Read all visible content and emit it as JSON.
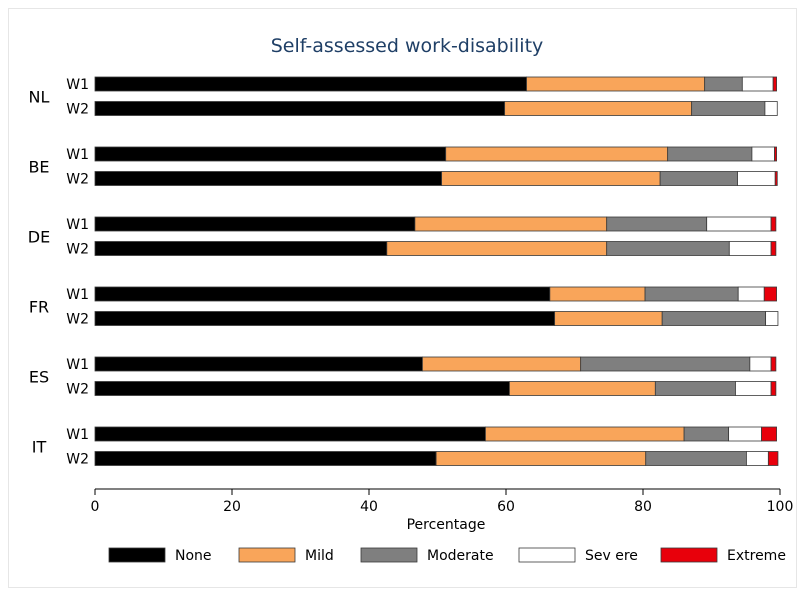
{
  "chart_data": {
    "type": "bar",
    "orientation": "horizontal",
    "stacked": true,
    "title": "Self-assessed work-disability",
    "xlabel": "Percentage",
    "ylabel": "",
    "xlim": [
      0,
      100
    ],
    "xticks": [
      0,
      20,
      40,
      60,
      80,
      100
    ],
    "grid": false,
    "legend_position": "bottom",
    "legend": [
      "None",
      "Mild",
      "Moderate",
      "Sev ere",
      "Extreme"
    ],
    "colors": [
      "#000000",
      "#f9a55a",
      "#7f7f7f",
      "#ffffff",
      "#e8000b"
    ],
    "groups": [
      {
        "name": "NL",
        "rows": [
          {
            "wave": "W1",
            "values": [
              63.0,
              26.0,
              5.5,
              4.5,
              0.5
            ]
          },
          {
            "wave": "W2",
            "values": [
              59.8,
              27.3,
              10.7,
              1.8,
              0.0
            ]
          }
        ]
      },
      {
        "name": "BE",
        "rows": [
          {
            "wave": "W1",
            "values": [
              51.2,
              32.4,
              12.3,
              3.3,
              0.3
            ]
          },
          {
            "wave": "W2",
            "values": [
              50.6,
              31.9,
              11.3,
              5.5,
              0.3
            ]
          }
        ]
      },
      {
        "name": "DE",
        "rows": [
          {
            "wave": "W1",
            "values": [
              46.7,
              28.0,
              14.6,
              9.4,
              0.7
            ]
          },
          {
            "wave": "W2",
            "values": [
              42.6,
              32.1,
              17.9,
              6.1,
              0.7
            ]
          }
        ]
      },
      {
        "name": "FR",
        "rows": [
          {
            "wave": "W1",
            "values": [
              66.4,
              13.9,
              13.6,
              3.8,
              1.8
            ]
          },
          {
            "wave": "W2",
            "values": [
              67.1,
              15.7,
              15.1,
              1.8,
              0.0
            ]
          }
        ]
      },
      {
        "name": "ES",
        "rows": [
          {
            "wave": "W1",
            "values": [
              47.8,
              23.1,
              24.7,
              3.1,
              0.7
            ]
          },
          {
            "wave": "W2",
            "values": [
              60.5,
              21.3,
              11.7,
              5.2,
              0.7
            ]
          }
        ]
      },
      {
        "name": "IT",
        "rows": [
          {
            "wave": "W1",
            "values": [
              57.0,
              29.0,
              6.5,
              4.8,
              2.2
            ]
          },
          {
            "wave": "W2",
            "values": [
              49.8,
              30.6,
              14.7,
              3.2,
              1.4
            ]
          }
        ]
      }
    ]
  }
}
